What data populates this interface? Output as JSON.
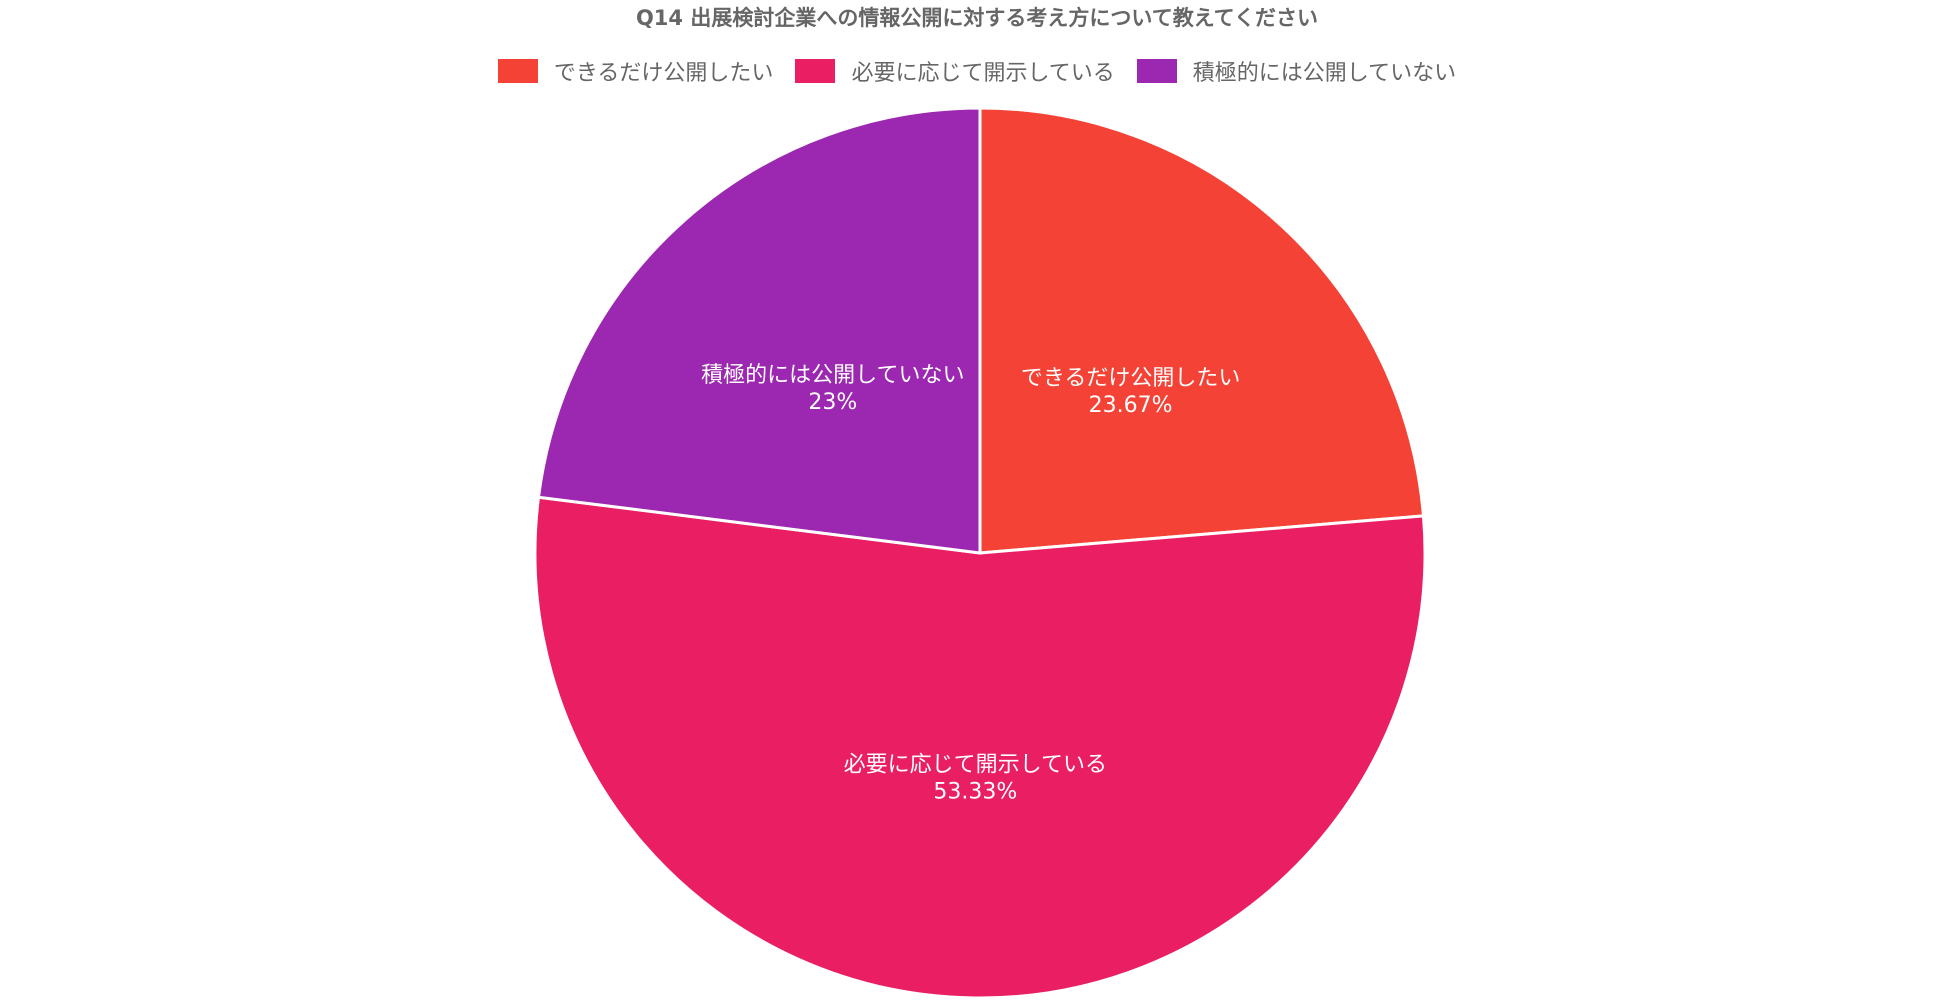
{
  "chart_data": {
    "type": "pie",
    "title": "Q14 出展検討企業への情報公開に対する考え方について教えてください",
    "categories": [
      "できるだけ公開したい",
      "必要に応じて開示している",
      "積極的には公開していない"
    ],
    "values": [
      23.67,
      53.33,
      23
    ],
    "value_labels": [
      "23.67%",
      "53.33%",
      "23%"
    ],
    "colors": [
      "#F44336",
      "#E91E63",
      "#9C27B0"
    ],
    "legend_position": "top",
    "start_angle": "12 o'clock, clockwise"
  }
}
